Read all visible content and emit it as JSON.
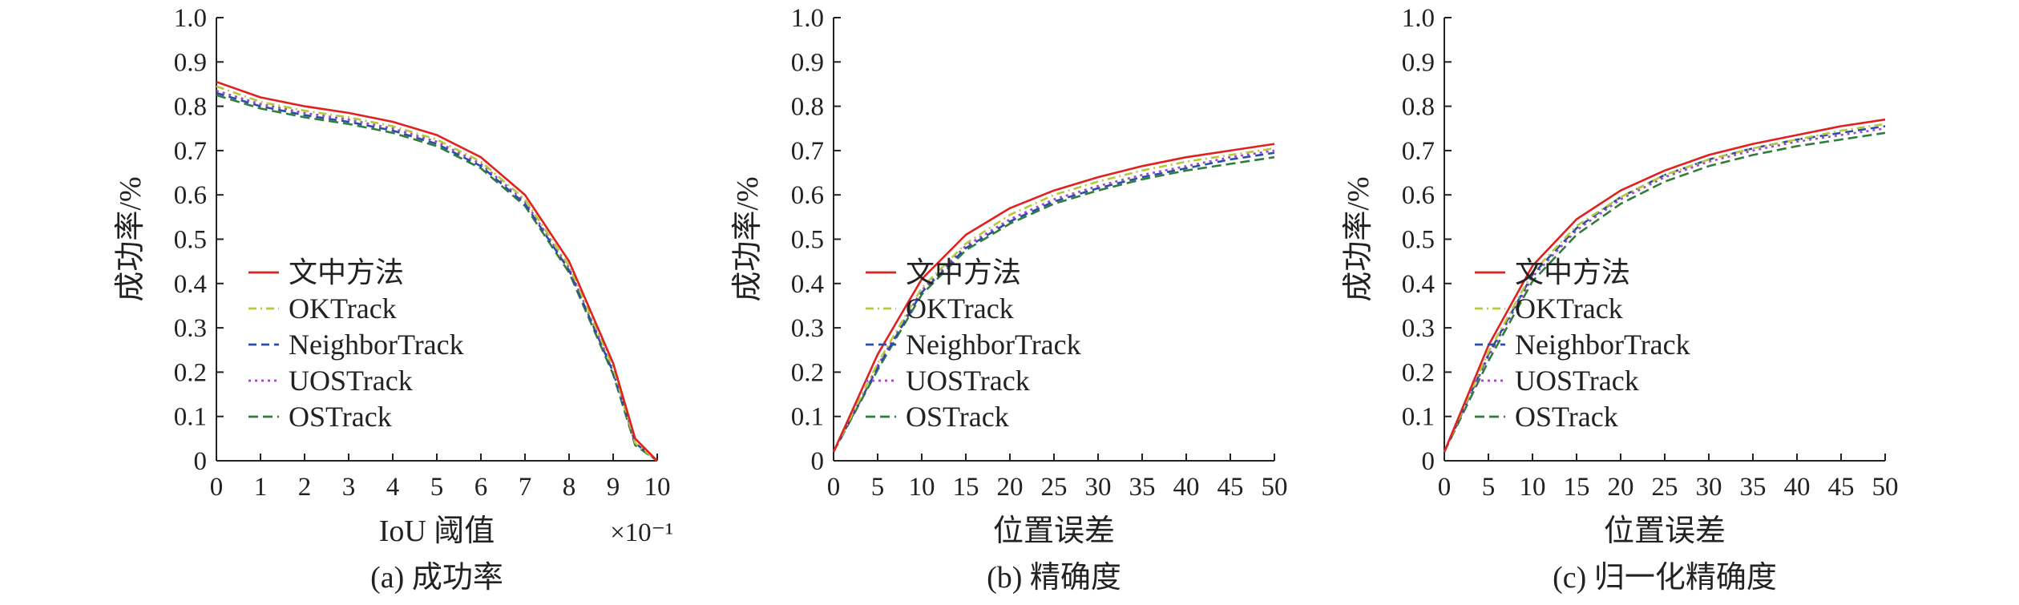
{
  "chart_data": [
    {
      "type": "line",
      "caption": "(a) 成功率",
      "ylabel": "成功率/%",
      "xlabel": "IoU 阈值",
      "x_multiplier": "×10⁻¹",
      "xlim": [
        0,
        10
      ],
      "ylim": [
        0,
        1
      ],
      "x_ticks": [
        "0",
        "1",
        "2",
        "3",
        "4",
        "5",
        "6",
        "7",
        "8",
        "9",
        "10"
      ],
      "y_ticks": [
        "0",
        "0.1",
        "0.2",
        "0.3",
        "0.4",
        "0.5",
        "0.6",
        "0.7",
        "0.8",
        "0.9",
        "1.0"
      ],
      "x": [
        0,
        1,
        2,
        3,
        4,
        5,
        6,
        7,
        8,
        9,
        9.5,
        10
      ],
      "series": [
        {
          "name": "文中方法",
          "values": [
            0.855,
            0.82,
            0.8,
            0.785,
            0.765,
            0.735,
            0.685,
            0.6,
            0.45,
            0.22,
            0.05,
            0.0
          ]
        },
        {
          "name": "OKTrack",
          "values": [
            0.845,
            0.81,
            0.79,
            0.775,
            0.755,
            0.725,
            0.675,
            0.59,
            0.44,
            0.21,
            0.04,
            0.0
          ]
        },
        {
          "name": "NeighborTrack",
          "values": [
            0.83,
            0.8,
            0.78,
            0.765,
            0.745,
            0.715,
            0.665,
            0.58,
            0.43,
            0.2,
            0.04,
            0.0
          ]
        },
        {
          "name": "UOSTrack",
          "values": [
            0.835,
            0.805,
            0.785,
            0.77,
            0.75,
            0.72,
            0.67,
            0.585,
            0.435,
            0.205,
            0.04,
            0.0
          ]
        },
        {
          "name": "OSTrack",
          "values": [
            0.825,
            0.795,
            0.775,
            0.76,
            0.74,
            0.71,
            0.66,
            0.575,
            0.425,
            0.195,
            0.035,
            0.0
          ]
        }
      ]
    },
    {
      "type": "line",
      "caption": "(b) 精确度",
      "ylabel": "成功率/%",
      "xlabel": "位置误差",
      "xlim": [
        0,
        50
      ],
      "ylim": [
        0,
        1
      ],
      "x_ticks": [
        "0",
        "5",
        "10",
        "15",
        "20",
        "25",
        "30",
        "35",
        "40",
        "45",
        "50"
      ],
      "y_ticks": [
        "0",
        "0.1",
        "0.2",
        "0.3",
        "0.4",
        "0.5",
        "0.6",
        "0.7",
        "0.8",
        "0.9",
        "1.0"
      ],
      "x": [
        0,
        5,
        10,
        15,
        20,
        25,
        30,
        35,
        40,
        45,
        50
      ],
      "series": [
        {
          "name": "文中方法",
          "values": [
            0.02,
            0.24,
            0.41,
            0.51,
            0.57,
            0.61,
            0.64,
            0.665,
            0.685,
            0.7,
            0.715
          ]
        },
        {
          "name": "OKTrack",
          "values": [
            0.02,
            0.22,
            0.39,
            0.49,
            0.555,
            0.6,
            0.63,
            0.655,
            0.675,
            0.69,
            0.705
          ]
        },
        {
          "name": "NeighborTrack",
          "values": [
            0.02,
            0.21,
            0.38,
            0.48,
            0.54,
            0.585,
            0.615,
            0.64,
            0.66,
            0.68,
            0.695
          ]
        },
        {
          "name": "UOSTrack",
          "values": [
            0.02,
            0.215,
            0.385,
            0.485,
            0.545,
            0.59,
            0.62,
            0.645,
            0.665,
            0.685,
            0.7
          ]
        },
        {
          "name": "OSTrack",
          "values": [
            0.02,
            0.205,
            0.375,
            0.475,
            0.535,
            0.58,
            0.61,
            0.635,
            0.655,
            0.67,
            0.685
          ]
        }
      ]
    },
    {
      "type": "line",
      "caption": "(c) 归一化精确度",
      "ylabel": "成功率/%",
      "xlabel": "位置误差",
      "xlim": [
        0,
        50
      ],
      "ylim": [
        0,
        1
      ],
      "x_ticks": [
        "0",
        "5",
        "10",
        "15",
        "20",
        "25",
        "30",
        "35",
        "40",
        "45",
        "50"
      ],
      "y_ticks": [
        "0",
        "0.1",
        "0.2",
        "0.3",
        "0.4",
        "0.5",
        "0.6",
        "0.7",
        "0.8",
        "0.9",
        "1.0"
      ],
      "x": [
        0,
        5,
        10,
        15,
        20,
        25,
        30,
        35,
        40,
        45,
        50
      ],
      "series": [
        {
          "name": "文中方法",
          "values": [
            0.02,
            0.26,
            0.44,
            0.545,
            0.61,
            0.655,
            0.69,
            0.715,
            0.735,
            0.755,
            0.77
          ]
        },
        {
          "name": "OKTrack",
          "values": [
            0.02,
            0.245,
            0.425,
            0.53,
            0.595,
            0.645,
            0.68,
            0.705,
            0.725,
            0.745,
            0.76
          ]
        },
        {
          "name": "NeighborTrack",
          "values": [
            0.02,
            0.24,
            0.42,
            0.525,
            0.595,
            0.645,
            0.68,
            0.705,
            0.725,
            0.74,
            0.755
          ]
        },
        {
          "name": "UOSTrack",
          "values": [
            0.02,
            0.235,
            0.415,
            0.52,
            0.59,
            0.64,
            0.675,
            0.7,
            0.72,
            0.735,
            0.75
          ]
        },
        {
          "name": "OSTrack",
          "values": [
            0.02,
            0.225,
            0.405,
            0.51,
            0.58,
            0.63,
            0.665,
            0.69,
            0.71,
            0.725,
            0.74
          ]
        }
      ]
    }
  ],
  "series_styles": [
    {
      "color": "#e0211f",
      "dash": "none"
    },
    {
      "color": "#b5c93a",
      "dash": "10,5,2,5"
    },
    {
      "color": "#2b4fa8",
      "dash": "10,6"
    },
    {
      "color": "#a349c8",
      "dash": "3,5"
    },
    {
      "color": "#2f7d3a",
      "dash": "12,6"
    }
  ]
}
